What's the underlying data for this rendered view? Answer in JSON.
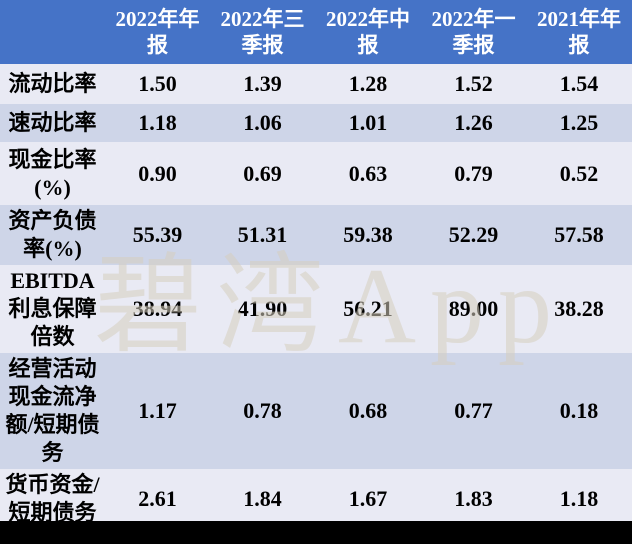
{
  "chart_data": {
    "type": "table",
    "title": "",
    "columns": [
      "",
      "2022年年报",
      "2022年三季报",
      "2022年中报",
      "2022年一季报",
      "2021年年报"
    ],
    "rows": [
      {
        "label": "流动比率",
        "values": [
          "1.50",
          "1.39",
          "1.28",
          "1.52",
          "1.54"
        ]
      },
      {
        "label": "速动比率",
        "values": [
          "1.18",
          "1.06",
          "1.01",
          "1.26",
          "1.25"
        ]
      },
      {
        "label": "现金比率(%)",
        "values": [
          "0.90",
          "0.69",
          "0.63",
          "0.79",
          "0.52"
        ]
      },
      {
        "label": "资产负债率(%)",
        "values": [
          "55.39",
          "51.31",
          "59.38",
          "52.29",
          "57.58"
        ]
      },
      {
        "label": "EBITDA利息保障倍数",
        "values": [
          "38.94",
          "41.90",
          "56.21",
          "89.00",
          "38.28"
        ]
      },
      {
        "label": "经营活动现金流净额/短期债务",
        "values": [
          "1.17",
          "0.78",
          "0.68",
          "0.77",
          "0.18"
        ]
      },
      {
        "label": "货币资金/短期债务",
        "values": [
          "2.61",
          "1.84",
          "1.67",
          "1.83",
          "1.18"
        ]
      }
    ]
  },
  "watermark": {
    "text": "碧湾App"
  },
  "colors": {
    "header_background": "#4573C7",
    "header_text": "#FFFFFF",
    "row_light": "#E9EAF4",
    "row_dark": "#CED5E8",
    "body_text": "#000000",
    "bottom_bar": "#000000"
  }
}
